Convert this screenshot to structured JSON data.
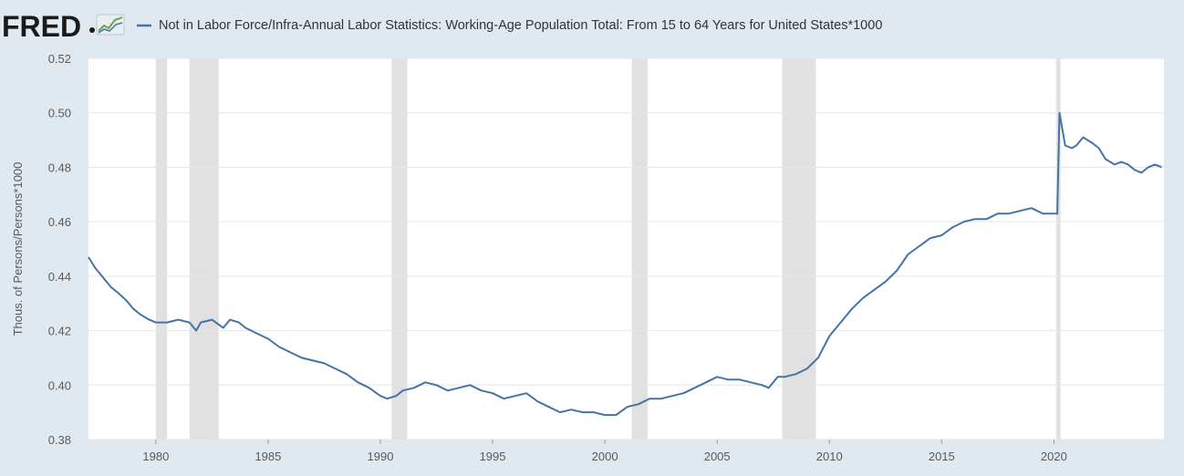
{
  "logo": {
    "text": "FRED"
  },
  "chart_data": {
    "type": "line",
    "title": "",
    "series": [
      {
        "name": "Not in Labor Force/Infra-Annual Labor Statistics: Working-Age Population Total: From 15 to 64 Years for United States*1000",
        "color": "#4572a7",
        "points": [
          [
            1977.0,
            0.447
          ],
          [
            1977.3,
            0.443
          ],
          [
            1977.7,
            0.439
          ],
          [
            1978.0,
            0.436
          ],
          [
            1978.3,
            0.434
          ],
          [
            1978.7,
            0.431
          ],
          [
            1979.0,
            0.428
          ],
          [
            1979.3,
            0.426
          ],
          [
            1979.7,
            0.424
          ],
          [
            1980.0,
            0.423
          ],
          [
            1980.5,
            0.423
          ],
          [
            1981.0,
            0.424
          ],
          [
            1981.5,
            0.423
          ],
          [
            1981.8,
            0.42
          ],
          [
            1982.0,
            0.423
          ],
          [
            1982.5,
            0.424
          ],
          [
            1983.0,
            0.421
          ],
          [
            1983.3,
            0.424
          ],
          [
            1983.7,
            0.423
          ],
          [
            1984.0,
            0.421
          ],
          [
            1984.5,
            0.419
          ],
          [
            1985.0,
            0.417
          ],
          [
            1985.5,
            0.414
          ],
          [
            1986.0,
            0.412
          ],
          [
            1986.5,
            0.41
          ],
          [
            1987.0,
            0.409
          ],
          [
            1987.5,
            0.408
          ],
          [
            1988.0,
            0.406
          ],
          [
            1988.5,
            0.404
          ],
          [
            1989.0,
            0.401
          ],
          [
            1989.5,
            0.399
          ],
          [
            1990.0,
            0.396
          ],
          [
            1990.3,
            0.395
          ],
          [
            1990.7,
            0.396
          ],
          [
            1991.0,
            0.398
          ],
          [
            1991.5,
            0.399
          ],
          [
            1992.0,
            0.401
          ],
          [
            1992.5,
            0.4
          ],
          [
            1993.0,
            0.398
          ],
          [
            1993.5,
            0.399
          ],
          [
            1994.0,
            0.4
          ],
          [
            1994.5,
            0.398
          ],
          [
            1995.0,
            0.397
          ],
          [
            1995.5,
            0.395
          ],
          [
            1996.0,
            0.396
          ],
          [
            1996.5,
            0.397
          ],
          [
            1997.0,
            0.394
          ],
          [
            1997.5,
            0.392
          ],
          [
            1998.0,
            0.39
          ],
          [
            1998.5,
            0.391
          ],
          [
            1999.0,
            0.39
          ],
          [
            1999.5,
            0.39
          ],
          [
            2000.0,
            0.389
          ],
          [
            2000.5,
            0.389
          ],
          [
            2001.0,
            0.392
          ],
          [
            2001.5,
            0.393
          ],
          [
            2002.0,
            0.395
          ],
          [
            2002.5,
            0.395
          ],
          [
            2003.0,
            0.396
          ],
          [
            2003.5,
            0.397
          ],
          [
            2004.0,
            0.399
          ],
          [
            2004.5,
            0.401
          ],
          [
            2005.0,
            0.403
          ],
          [
            2005.5,
            0.402
          ],
          [
            2006.0,
            0.402
          ],
          [
            2006.5,
            0.401
          ],
          [
            2007.0,
            0.4
          ],
          [
            2007.3,
            0.399
          ],
          [
            2007.7,
            0.403
          ],
          [
            2008.0,
            0.403
          ],
          [
            2008.5,
            0.404
          ],
          [
            2009.0,
            0.406
          ],
          [
            2009.5,
            0.41
          ],
          [
            2010.0,
            0.418
          ],
          [
            2010.5,
            0.423
          ],
          [
            2011.0,
            0.428
          ],
          [
            2011.5,
            0.432
          ],
          [
            2012.0,
            0.435
          ],
          [
            2012.5,
            0.438
          ],
          [
            2013.0,
            0.442
          ],
          [
            2013.5,
            0.448
          ],
          [
            2014.0,
            0.451
          ],
          [
            2014.5,
            0.454
          ],
          [
            2015.0,
            0.455
          ],
          [
            2015.5,
            0.458
          ],
          [
            2016.0,
            0.46
          ],
          [
            2016.5,
            0.461
          ],
          [
            2017.0,
            0.461
          ],
          [
            2017.5,
            0.463
          ],
          [
            2018.0,
            0.463
          ],
          [
            2018.5,
            0.464
          ],
          [
            2019.0,
            0.465
          ],
          [
            2019.5,
            0.463
          ],
          [
            2020.0,
            0.463
          ],
          [
            2020.15,
            0.463
          ],
          [
            2020.25,
            0.5
          ],
          [
            2020.5,
            0.488
          ],
          [
            2020.8,
            0.487
          ],
          [
            2021.0,
            0.488
          ],
          [
            2021.3,
            0.491
          ],
          [
            2021.7,
            0.489
          ],
          [
            2022.0,
            0.487
          ],
          [
            2022.3,
            0.483
          ],
          [
            2022.7,
            0.481
          ],
          [
            2023.0,
            0.482
          ],
          [
            2023.3,
            0.481
          ],
          [
            2023.6,
            0.479
          ],
          [
            2023.9,
            0.478
          ],
          [
            2024.2,
            0.48
          ],
          [
            2024.5,
            0.481
          ],
          [
            2024.8,
            0.48
          ]
        ]
      }
    ],
    "recessions": [
      [
        1980.0,
        1980.5
      ],
      [
        1981.5,
        1982.8
      ],
      [
        1990.5,
        1991.2
      ],
      [
        2001.2,
        2001.9
      ],
      [
        2007.9,
        2009.4
      ],
      [
        2020.1,
        2020.3
      ]
    ],
    "xlim": [
      1977.0,
      2024.9
    ],
    "ylim": [
      0.38,
      0.52
    ],
    "xticks": [
      "1980",
      "1985",
      "1990",
      "1995",
      "2000",
      "2005",
      "2010",
      "2015",
      "2020"
    ],
    "xtick_values": [
      1980,
      1985,
      1990,
      1995,
      2000,
      2005,
      2010,
      2015,
      2020
    ],
    "yticks": [
      "0.38",
      "0.40",
      "0.42",
      "0.44",
      "0.46",
      "0.48",
      "0.50",
      "0.52"
    ],
    "ytick_values": [
      0.38,
      0.4,
      0.42,
      0.44,
      0.46,
      0.48,
      0.5,
      0.52
    ],
    "ylabel": "Thous. of Persons/Persons*1000",
    "xlabel": "",
    "grid": true,
    "colors": {
      "background": "#e1e9f0",
      "plot": "#ffffff",
      "grid": "#e6e6e6",
      "recession": "#e1e1e1",
      "text": "#595959"
    }
  }
}
